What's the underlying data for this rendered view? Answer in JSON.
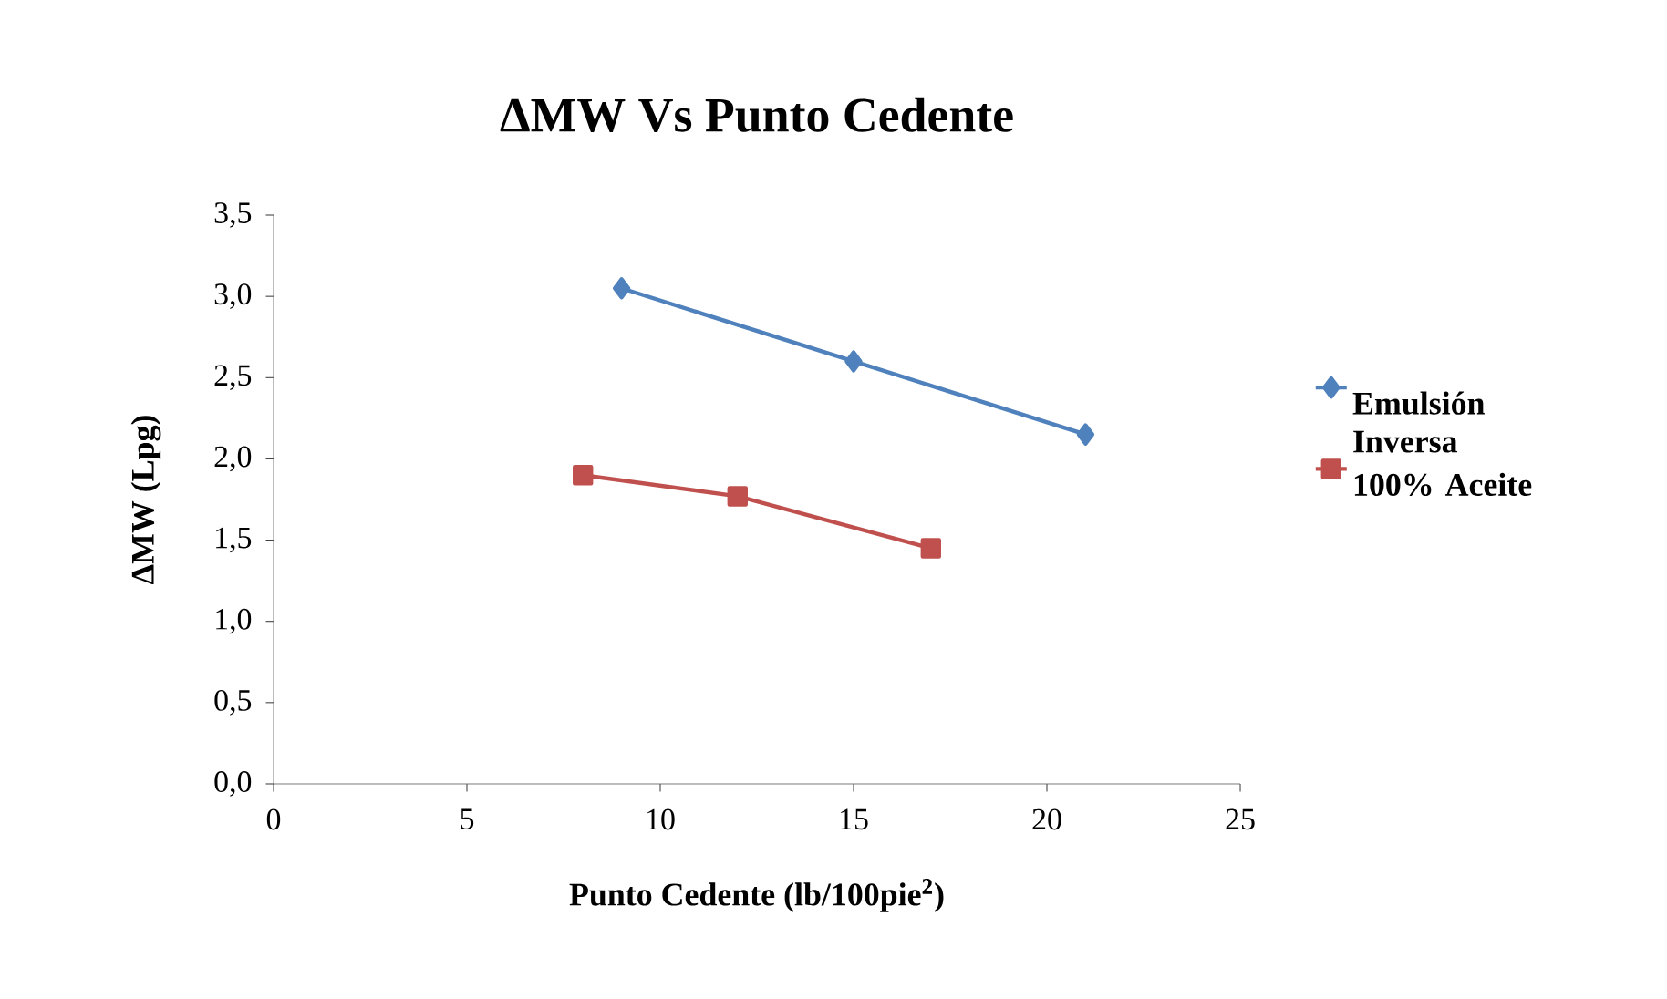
{
  "chart_data": {
    "type": "line",
    "title": "ΔMW Vs Punto Cedente",
    "xlabel": "Punto Cedente (lb/100pie$^{2}$)",
    "ylabel": "ΔMW (Lpg)",
    "xlim": [
      0,
      25
    ],
    "xticks": [
      0,
      5,
      10,
      15,
      20,
      25
    ],
    "ylim": [
      0,
      3.5
    ],
    "yticks": [
      {
        "value": 0,
        "label": "0,0"
      },
      {
        "value": 0.5,
        "label": "0,5"
      },
      {
        "value": 1,
        "label": "1,0"
      },
      {
        "value": 1.5,
        "label": "1,5"
      },
      {
        "value": 2,
        "label": "2,0"
      },
      {
        "value": 2.5,
        "label": "2,5"
      },
      {
        "value": 3,
        "label": "3,0"
      },
      {
        "value": 3.5,
        "label": "3,5"
      }
    ],
    "grid": false,
    "legend": "right",
    "series": [
      {
        "name": "Emulsión Inversa",
        "color": "#4f81bd",
        "marker": "diamond",
        "x": [
          9,
          15,
          21
        ],
        "values": [
          3.05,
          2.6,
          2.15
        ]
      },
      {
        "name": "100% Aceite",
        "color": "#c0504d",
        "marker": "square",
        "x": [
          8,
          12,
          17
        ],
        "values": [
          1.9,
          1.77,
          1.45
        ]
      }
    ]
  }
}
